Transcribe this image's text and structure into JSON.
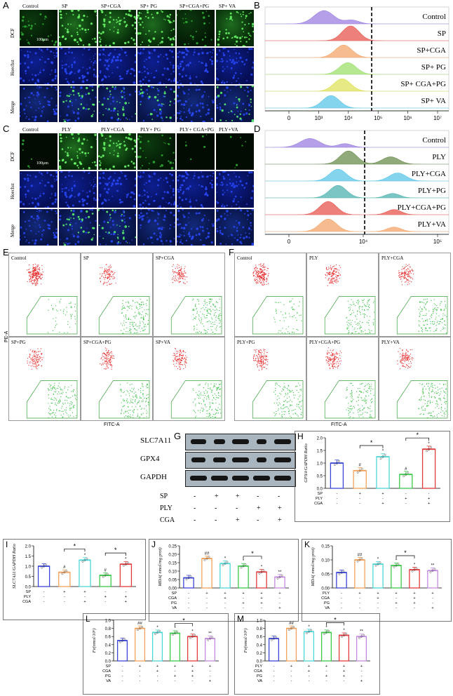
{
  "panels": {
    "A": {
      "letter": "A",
      "conditions": [
        "Control",
        "SP",
        "SP+CGA",
        "SP+ PG",
        "SP+CGA+PG",
        "SP+ VA"
      ],
      "rows": [
        "DCF",
        "Hoechst",
        "Merge"
      ],
      "scale": "100μm"
    },
    "B": {
      "letter": "B",
      "labels": [
        "Control",
        "SP",
        "SP+CGA",
        "SP+ PG",
        "SP+ CGA+PG",
        "SP+ VA"
      ],
      "colors": [
        "#9b7fe0",
        "#e8564f",
        "#f3a56a",
        "#9ee06e",
        "#dde25b",
        "#5cc6e8"
      ],
      "xlabel": "FL1-A :: FITC-A",
      "ticks": [
        "0",
        "10³",
        "10⁴",
        "10⁵",
        "10⁶",
        "10⁷"
      ]
    },
    "C": {
      "letter": "C",
      "conditions": [
        "Control",
        "PLY",
        "PLY+CGA",
        "PLY+ PG",
        "PLY+ CGA+PG",
        "PLY+VA"
      ],
      "rows": [
        "DCF",
        "Hoechst",
        "Merge"
      ],
      "scale": "100μm"
    },
    "D": {
      "letter": "D",
      "labels": [
        "Control",
        "PLY",
        "PLY+CGA",
        "PLY+PG",
        "PLY+CGA+PG",
        "PLY+VA"
      ],
      "colors": [
        "#9b7fe0",
        "#6b8e4e",
        "#5cc6e8",
        "#4fb3b0",
        "#e8564f",
        "#f3a56a"
      ],
      "xlabel": "FL1-A :: FITC-A",
      "ticks": [
        "0",
        "10⁴",
        "10⁵"
      ]
    },
    "E": {
      "letter": "E",
      "tiles": [
        "Control",
        "SP",
        "SP+CGA",
        "SP+PG",
        "SP+CGA+PG",
        "SP+VA"
      ],
      "ylabel": "PE-A",
      "xlabel": "FITC-A"
    },
    "F": {
      "letter": "F",
      "tiles": [
        "Control",
        "PLY",
        "PLY+CGA",
        "PLY+PG",
        "PLY+CGA+PG",
        "PLY+VA"
      ],
      "xlabel": "FITC-A"
    },
    "G": {
      "letter": "G",
      "proteins": [
        "SLC7A11",
        "GPX4",
        "GAPDH"
      ],
      "treatments": [
        {
          "name": "SP",
          "signs": [
            "-",
            "+",
            "+",
            "-",
            "-"
          ]
        },
        {
          "name": "PLY",
          "signs": [
            "-",
            "-",
            "-",
            "+",
            "+"
          ]
        },
        {
          "name": "CGA",
          "signs": [
            "-",
            "-",
            "+",
            "-",
            "+"
          ]
        }
      ]
    }
  },
  "chart_data": [
    {
      "id": "H",
      "type": "bar",
      "ylabel": "GPX4/GAPDH Ratio",
      "categories": [
        "1",
        "2",
        "3",
        "4",
        "5"
      ],
      "values": [
        1.0,
        0.7,
        1.25,
        0.55,
        1.55
      ],
      "ylim": [
        0,
        2.0
      ],
      "yticks": [
        "0.0",
        "0.5",
        "1.0",
        "1.5",
        "2.0"
      ],
      "colors": [
        "#3b46d6",
        "#f2a25a",
        "#4fd6d6",
        "#3cc94a",
        "#e23b3b"
      ],
      "marks": [
        "",
        "#",
        "*",
        "#",
        "*"
      ],
      "rows": [
        {
          "name": "SP",
          "signs": [
            "-",
            "+",
            "+",
            "-",
            "-"
          ]
        },
        {
          "name": "PLY",
          "signs": [
            "-",
            "-",
            "-",
            "+",
            "+"
          ]
        },
        {
          "name": "CGA",
          "signs": [
            "-",
            "-",
            "+",
            "-",
            "+"
          ]
        }
      ],
      "sig": [
        "*",
        "*"
      ]
    },
    {
      "id": "I",
      "type": "bar",
      "ylabel": "SLC7A11/GAPDH Ratio",
      "categories": [
        "1",
        "2",
        "3",
        "4",
        "5"
      ],
      "values": [
        1.0,
        0.7,
        1.3,
        0.55,
        1.1
      ],
      "ylim": [
        0,
        2.0
      ],
      "yticks": [
        "0.0",
        "0.5",
        "1.0",
        "1.5",
        "2.0"
      ],
      "colors": [
        "#3b46d6",
        "#f2a25a",
        "#4fd6d6",
        "#3cc94a",
        "#e23b3b"
      ],
      "marks": [
        "",
        "#",
        "*",
        "#",
        "*"
      ],
      "rows": [
        {
          "name": "SP",
          "signs": [
            "-",
            "+",
            "+",
            "-",
            "-"
          ]
        },
        {
          "name": "PLY",
          "signs": [
            "-",
            "-",
            "-",
            "+",
            "+"
          ]
        },
        {
          "name": "CGA",
          "signs": [
            "-",
            "-",
            "+",
            "-",
            "+"
          ]
        }
      ],
      "sig": [
        "*",
        "*"
      ]
    },
    {
      "id": "J",
      "type": "bar",
      "ylabel": "MDA( nmol/mg prot)",
      "categories": [
        "1",
        "2",
        "3",
        "4",
        "5",
        "6"
      ],
      "values": [
        0.06,
        0.175,
        0.145,
        0.13,
        0.095,
        0.065
      ],
      "ylim": [
        0,
        0.25
      ],
      "yticks": [
        "0.00",
        "0.05",
        "0.10",
        "0.15",
        "0.20",
        "0.25"
      ],
      "colors": [
        "#3b46d6",
        "#f2a25a",
        "#4fd6d6",
        "#3cc94a",
        "#e23b3b",
        "#c58ae0"
      ],
      "marks": [
        "",
        "##",
        "*",
        "*",
        "*",
        "**"
      ],
      "rows": [
        {
          "name": "SP",
          "signs": [
            "-",
            "+",
            "+",
            "+",
            "+",
            "+"
          ]
        },
        {
          "name": "CGA",
          "signs": [
            "-",
            "-",
            "+",
            "-",
            "+",
            "-"
          ]
        },
        {
          "name": "PG",
          "signs": [
            "-",
            "-",
            "-",
            "+",
            "+",
            "-"
          ]
        },
        {
          "name": "VA",
          "signs": [
            "-",
            "-",
            "-",
            "-",
            "-",
            "+"
          ]
        }
      ],
      "sig": [
        "*"
      ]
    },
    {
      "id": "K",
      "type": "bar",
      "ylabel": "MDA( nmol/mg prot)",
      "categories": [
        "1",
        "2",
        "3",
        "4",
        "5",
        "6"
      ],
      "values": [
        0.055,
        0.1,
        0.085,
        0.08,
        0.065,
        0.062
      ],
      "ylim": [
        0,
        0.15
      ],
      "yticks": [
        "0.00",
        "0.05",
        "0.10",
        "0.15"
      ],
      "colors": [
        "#3b46d6",
        "#f2a25a",
        "#4fd6d6",
        "#3cc94a",
        "#e23b3b",
        "#c58ae0"
      ],
      "marks": [
        "",
        "##",
        "*",
        "*",
        "*",
        "**"
      ],
      "rows": [
        {
          "name": "PLY",
          "signs": [
            "-",
            "+",
            "+",
            "+",
            "+",
            "+"
          ]
        },
        {
          "name": "CGA",
          "signs": [
            "-",
            "-",
            "+",
            "-",
            "+",
            "-"
          ]
        },
        {
          "name": "PG",
          "signs": [
            "-",
            "-",
            "-",
            "+",
            "+",
            "-"
          ]
        },
        {
          "name": "VA",
          "signs": [
            "-",
            "-",
            "-",
            "-",
            "-",
            "+"
          ]
        }
      ],
      "sig": [
        "*"
      ]
    },
    {
      "id": "L",
      "type": "bar",
      "ylabel": "Fe(nmol/10⁶)",
      "categories": [
        "1",
        "2",
        "3",
        "4",
        "5",
        "6"
      ],
      "values": [
        0.5,
        0.8,
        0.7,
        0.68,
        0.6,
        0.55
      ],
      "ylim": [
        0,
        1.0
      ],
      "yticks": [
        "0.0",
        "0.2",
        "0.4",
        "0.6",
        "0.8",
        "1.0"
      ],
      "colors": [
        "#3b46d6",
        "#f2a25a",
        "#4fd6d6",
        "#3cc94a",
        "#e23b3b",
        "#c58ae0"
      ],
      "marks": [
        "",
        "##",
        "*",
        "*",
        "*",
        "**"
      ],
      "rows": [
        {
          "name": "SP",
          "signs": [
            "-",
            "+",
            "+",
            "+",
            "+",
            "+"
          ]
        },
        {
          "name": "CGA",
          "signs": [
            "-",
            "-",
            "+",
            "-",
            "+",
            "-"
          ]
        },
        {
          "name": "PG",
          "signs": [
            "-",
            "-",
            "-",
            "+",
            "+",
            "-"
          ]
        },
        {
          "name": "VA",
          "signs": [
            "-",
            "-",
            "-",
            "-",
            "-",
            "+"
          ]
        }
      ],
      "sig": [
        "*"
      ]
    },
    {
      "id": "M",
      "type": "bar",
      "ylabel": "Fe(nmol/10⁶)",
      "categories": [
        "1",
        "2",
        "3",
        "4",
        "5",
        "6"
      ],
      "values": [
        0.55,
        0.8,
        0.72,
        0.7,
        0.63,
        0.6
      ],
      "ylim": [
        0,
        1.0
      ],
      "yticks": [
        "0.0",
        "0.2",
        "0.4",
        "0.6",
        "0.8",
        "1.0"
      ],
      "colors": [
        "#3b46d6",
        "#f2a25a",
        "#4fd6d6",
        "#3cc94a",
        "#e23b3b",
        "#c58ae0"
      ],
      "marks": [
        "",
        "##",
        "*",
        "*",
        "*",
        "**"
      ],
      "rows": [
        {
          "name": "PLY",
          "signs": [
            "-",
            "+",
            "+",
            "+",
            "+",
            "+"
          ]
        },
        {
          "name": "CGA",
          "signs": [
            "-",
            "-",
            "+",
            "-",
            "+",
            "-"
          ]
        },
        {
          "name": "PG",
          "signs": [
            "-",
            "-",
            "-",
            "+",
            "+",
            "-"
          ]
        },
        {
          "name": "VA",
          "signs": [
            "-",
            "-",
            "-",
            "-",
            "-",
            "+"
          ]
        }
      ],
      "sig": [
        "*"
      ]
    }
  ]
}
